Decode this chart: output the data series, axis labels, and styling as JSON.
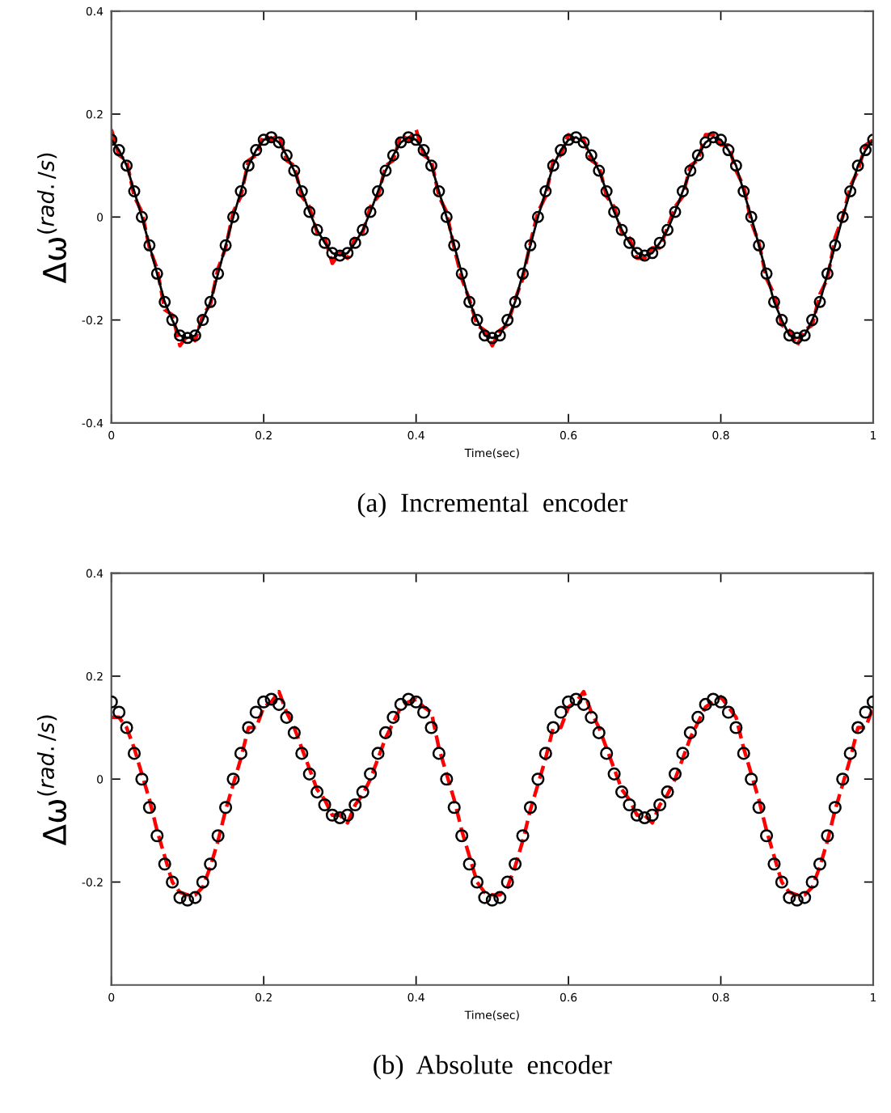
{
  "chart_data": [
    {
      "type": "line",
      "xlabel": "Time(sec)",
      "ylabel": "Δω$^{(rad./s)}$",
      "xlim": [
        0,
        1
      ],
      "ylim": [
        -0.4,
        0.4
      ],
      "xticks": [
        0,
        0.2,
        0.4,
        0.6,
        0.8,
        1
      ],
      "yticks": [
        -0.4,
        -0.2,
        0,
        0.2,
        0.4
      ],
      "grid": false,
      "legend": false,
      "annotations": [
        "(a)  Incremental  encoder"
      ],
      "x": [
        0,
        0.01,
        0.02,
        0.03,
        0.04,
        0.05,
        0.06,
        0.07,
        0.08,
        0.09,
        0.1,
        0.11,
        0.12,
        0.13,
        0.14,
        0.15,
        0.16,
        0.17,
        0.18,
        0.19,
        0.2,
        0.21,
        0.22,
        0.23,
        0.24,
        0.25,
        0.26,
        0.27,
        0.28,
        0.29,
        0.3,
        0.31,
        0.32,
        0.33,
        0.34,
        0.35,
        0.36,
        0.37,
        0.38,
        0.39,
        0.4,
        0.41,
        0.42,
        0.43,
        0.44,
        0.45,
        0.46,
        0.47,
        0.48,
        0.49,
        0.5,
        0.51,
        0.52,
        0.53,
        0.54,
        0.55,
        0.56,
        0.57,
        0.58,
        0.59,
        0.6,
        0.61,
        0.62,
        0.63,
        0.64,
        0.65,
        0.66,
        0.67,
        0.68,
        0.69,
        0.7,
        0.71,
        0.72,
        0.73,
        0.74,
        0.75,
        0.76,
        0.77,
        0.78,
        0.79,
        0.8,
        0.81,
        0.82,
        0.83,
        0.84,
        0.85,
        0.86,
        0.87,
        0.88,
        0.89,
        0.9,
        0.91,
        0.92,
        0.93,
        0.94,
        0.95,
        0.96,
        0.97,
        0.98,
        0.99,
        1
      ],
      "series": [
        {
          "color": "#ff0000",
          "line_style": "dashed",
          "marker": "none",
          "values": [
            0.17,
            0.12,
            0.11,
            0.04,
            0.01,
            -0.06,
            -0.1,
            -0.18,
            -0.19,
            -0.25,
            -0.23,
            -0.24,
            -0.19,
            -0.17,
            -0.1,
            -0.06,
            0.01,
            0.04,
            0.11,
            0.12,
            0.16,
            0.15,
            0.16,
            0.11,
            0.1,
            0.04,
            0.02,
            -0.03,
            -0.04,
            -0.09,
            -0.07,
            -0.08,
            -0.04,
            -0.03,
            0.02,
            0.04,
            0.1,
            0.11,
            0.16,
            0.15,
            0.17,
            0.12,
            0.11,
            0.04,
            0.01,
            -0.06,
            -0.12,
            -0.16,
            -0.21,
            -0.22,
            -0.25,
            -0.22,
            -0.21,
            -0.16,
            -0.12,
            -0.05,
            0.01,
            0.04,
            0.11,
            0.12,
            0.16,
            0.15,
            0.15,
            0.11,
            0.1,
            0.04,
            0.02,
            -0.03,
            -0.04,
            -0.08,
            -0.08,
            -0.06,
            -0.06,
            -0.02,
            0.02,
            0.04,
            0.1,
            0.11,
            0.16,
            0.16,
            0.14,
            0.14,
            0.09,
            0.06,
            -0.01,
            -0.05,
            -0.12,
            -0.15,
            -0.21,
            -0.22,
            -0.25,
            -0.22,
            -0.21,
            -0.15,
            -0.12,
            -0.04,
            0.0,
            0.06,
            0.09,
            0.14,
            0.15
          ]
        },
        {
          "color": "#000000",
          "line_style": "solid",
          "marker": "circle",
          "values": [
            0.15,
            0.13,
            0.1,
            0.05,
            0.0,
            -0.055,
            -0.11,
            -0.165,
            -0.2,
            -0.23,
            -0.235,
            -0.23,
            -0.2,
            -0.165,
            -0.11,
            -0.055,
            0.0,
            0.05,
            0.1,
            0.13,
            0.15,
            0.155,
            0.145,
            0.12,
            0.09,
            0.05,
            0.01,
            -0.025,
            -0.05,
            -0.07,
            -0.075,
            -0.07,
            -0.05,
            -0.025,
            0.01,
            0.05,
            0.09,
            0.12,
            0.145,
            0.155,
            0.15,
            0.13,
            0.1,
            0.05,
            0.0,
            -0.055,
            -0.11,
            -0.165,
            -0.2,
            -0.23,
            -0.235,
            -0.23,
            -0.2,
            -0.165,
            -0.11,
            -0.055,
            0.0,
            0.05,
            0.1,
            0.13,
            0.15,
            0.155,
            0.145,
            0.12,
            0.09,
            0.05,
            0.01,
            -0.025,
            -0.05,
            -0.07,
            -0.075,
            -0.07,
            -0.05,
            -0.025,
            0.01,
            0.05,
            0.09,
            0.12,
            0.145,
            0.155,
            0.15,
            0.13,
            0.1,
            0.05,
            0.0,
            -0.055,
            -0.11,
            -0.165,
            -0.2,
            -0.23,
            -0.235,
            -0.23,
            -0.2,
            -0.165,
            -0.11,
            -0.055,
            0.0,
            0.05,
            0.1,
            0.13,
            0.15
          ]
        }
      ]
    },
    {
      "type": "line",
      "xlabel": "Time(sec)",
      "ylabel": "Δω$^{(rad./s)}$",
      "xlim": [
        0,
        1
      ],
      "ylim": [
        -0.4,
        0.4
      ],
      "xticks": [
        0,
        0.2,
        0.4,
        0.6,
        0.8,
        1
      ],
      "yticks": [
        -0.2,
        0,
        0.2,
        0.4
      ],
      "grid": false,
      "legend": false,
      "annotations": [
        "(b)  Absolute  encoder"
      ],
      "x": [
        0,
        0.01,
        0.02,
        0.03,
        0.04,
        0.05,
        0.06,
        0.07,
        0.08,
        0.09,
        0.1,
        0.11,
        0.12,
        0.13,
        0.14,
        0.15,
        0.16,
        0.17,
        0.18,
        0.19,
        0.2,
        0.21,
        0.22,
        0.23,
        0.24,
        0.25,
        0.26,
        0.27,
        0.28,
        0.29,
        0.3,
        0.31,
        0.32,
        0.33,
        0.34,
        0.35,
        0.36,
        0.37,
        0.38,
        0.39,
        0.4,
        0.41,
        0.42,
        0.43,
        0.44,
        0.45,
        0.46,
        0.47,
        0.48,
        0.49,
        0.5,
        0.51,
        0.52,
        0.53,
        0.54,
        0.55,
        0.56,
        0.57,
        0.58,
        0.59,
        0.6,
        0.61,
        0.62,
        0.63,
        0.64,
        0.65,
        0.66,
        0.67,
        0.68,
        0.69,
        0.7,
        0.71,
        0.72,
        0.73,
        0.74,
        0.75,
        0.76,
        0.77,
        0.78,
        0.79,
        0.8,
        0.81,
        0.82,
        0.83,
        0.84,
        0.85,
        0.86,
        0.87,
        0.88,
        0.89,
        0.9,
        0.91,
        0.92,
        0.93,
        0.94,
        0.95,
        0.96,
        0.97,
        0.98,
        0.99,
        1
      ],
      "series": [
        {
          "color": "#ff0000",
          "line_style": "dashed",
          "marker": "none",
          "values": [
            0.12,
            0.12,
            0.1,
            0.06,
            0.01,
            -0.04,
            -0.1,
            -0.15,
            -0.2,
            -0.22,
            -0.225,
            -0.225,
            -0.21,
            -0.17,
            -0.12,
            -0.06,
            -0.01,
            0.04,
            0.1,
            0.1,
            0.14,
            0.15,
            0.17,
            0.13,
            0.1,
            0.06,
            0.02,
            -0.02,
            -0.04,
            -0.07,
            -0.07,
            -0.085,
            -0.05,
            -0.03,
            0.0,
            0.04,
            0.08,
            0.11,
            0.14,
            0.15,
            0.155,
            0.14,
            0.13,
            0.06,
            0.01,
            -0.04,
            -0.1,
            -0.15,
            -0.2,
            -0.22,
            -0.225,
            -0.225,
            -0.21,
            -0.17,
            -0.12,
            -0.06,
            -0.01,
            0.04,
            0.1,
            0.1,
            0.14,
            0.15,
            0.17,
            0.13,
            0.1,
            0.06,
            0.02,
            -0.02,
            -0.04,
            -0.07,
            -0.07,
            -0.085,
            -0.05,
            -0.03,
            0.0,
            0.04,
            0.08,
            0.11,
            0.14,
            0.15,
            0.16,
            0.14,
            0.12,
            0.06,
            0.01,
            -0.04,
            -0.1,
            -0.15,
            -0.2,
            -0.22,
            -0.225,
            -0.225,
            -0.21,
            -0.17,
            -0.12,
            -0.06,
            -0.01,
            0.04,
            0.1,
            0.1,
            0.14
          ]
        },
        {
          "type": "scatter",
          "color": "#000000",
          "marker": "circle",
          "values": [
            0.15,
            0.13,
            0.1,
            0.05,
            0.0,
            -0.055,
            -0.11,
            -0.165,
            -0.2,
            -0.23,
            -0.235,
            -0.23,
            -0.2,
            -0.165,
            -0.11,
            -0.055,
            0.0,
            0.05,
            0.1,
            0.13,
            0.15,
            0.155,
            0.145,
            0.12,
            0.09,
            0.05,
            0.01,
            -0.025,
            -0.05,
            -0.07,
            -0.075,
            -0.07,
            -0.05,
            -0.025,
            0.01,
            0.05,
            0.09,
            0.12,
            0.145,
            0.155,
            0.15,
            0.13,
            0.1,
            0.05,
            0.0,
            -0.055,
            -0.11,
            -0.165,
            -0.2,
            -0.23,
            -0.235,
            -0.23,
            -0.2,
            -0.165,
            -0.11,
            -0.055,
            0.0,
            0.05,
            0.1,
            0.13,
            0.15,
            0.155,
            0.145,
            0.12,
            0.09,
            0.05,
            0.01,
            -0.025,
            -0.05,
            -0.07,
            -0.075,
            -0.07,
            -0.05,
            -0.025,
            0.01,
            0.05,
            0.09,
            0.12,
            0.145,
            0.155,
            0.15,
            0.13,
            0.1,
            0.05,
            0.0,
            -0.055,
            -0.11,
            -0.165,
            -0.2,
            -0.23,
            -0.235,
            -0.23,
            -0.2,
            -0.165,
            -0.11,
            -0.055,
            0.0,
            0.05,
            0.1,
            0.13,
            0.15
          ]
        }
      ]
    }
  ]
}
